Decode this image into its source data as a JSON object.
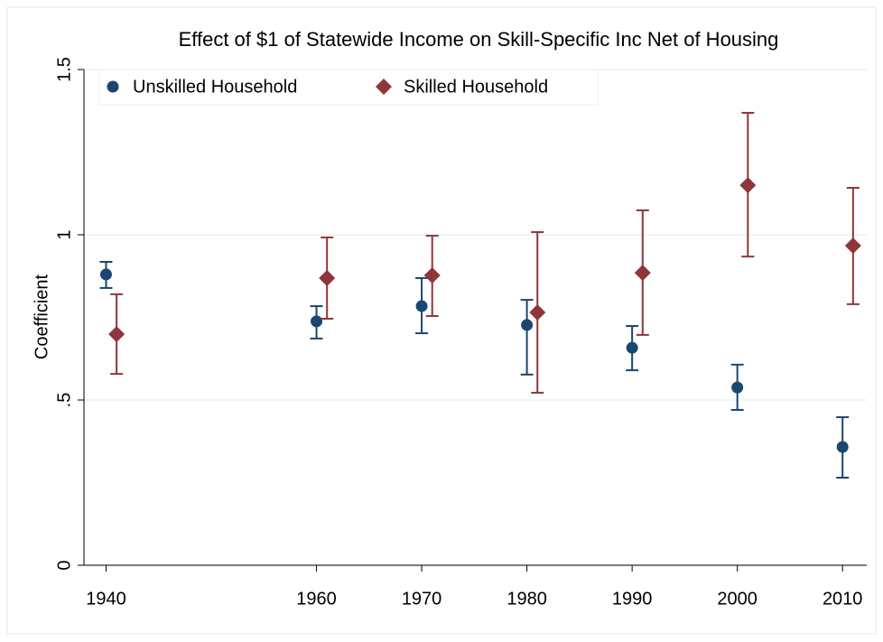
{
  "chart_data": {
    "type": "scatter",
    "title": "Effect of $1 of Statewide Income on Skill-Specific Inc Net of Housing",
    "y_label": "Coefficient",
    "xlim": [
      1937.9,
      2012.3
    ],
    "xticks": [
      1940,
      1960,
      1970,
      1980,
      1990,
      2000,
      2010
    ],
    "ylim": [
      0,
      1.5
    ],
    "yticks": [
      0,
      {
        "value": 0.5,
        "label": ".5"
      },
      1,
      {
        "value": 1.5,
        "label": "1.5"
      }
    ],
    "grid": true,
    "legend": "top-left",
    "series": [
      {
        "name": "Unskilled Household",
        "color": "#1a476f",
        "marker": "circle",
        "x": [
          1940,
          1960,
          1970,
          1980,
          1990,
          2000,
          2010
        ],
        "values": [
          0.88,
          0.738,
          0.784,
          0.727,
          0.658,
          0.538,
          0.358
        ],
        "lower": [
          0.839,
          0.686,
          0.702,
          0.577,
          0.59,
          0.47,
          0.265
        ],
        "upper": [
          0.918,
          0.784,
          0.869,
          0.803,
          0.724,
          0.607,
          0.448
        ]
      },
      {
        "name": "Skilled Household",
        "color": "#90353b",
        "marker": "diamond",
        "x": [
          1941,
          1961,
          1971,
          1981,
          1991,
          2001,
          2011
        ],
        "values": [
          0.699,
          0.869,
          0.877,
          0.765,
          0.885,
          1.15,
          0.967
        ],
        "lower": [
          0.579,
          0.746,
          0.754,
          0.522,
          0.697,
          0.934,
          0.79
        ],
        "upper": [
          0.82,
          0.992,
          0.997,
          1.008,
          1.074,
          1.369,
          1.142
        ]
      }
    ]
  }
}
